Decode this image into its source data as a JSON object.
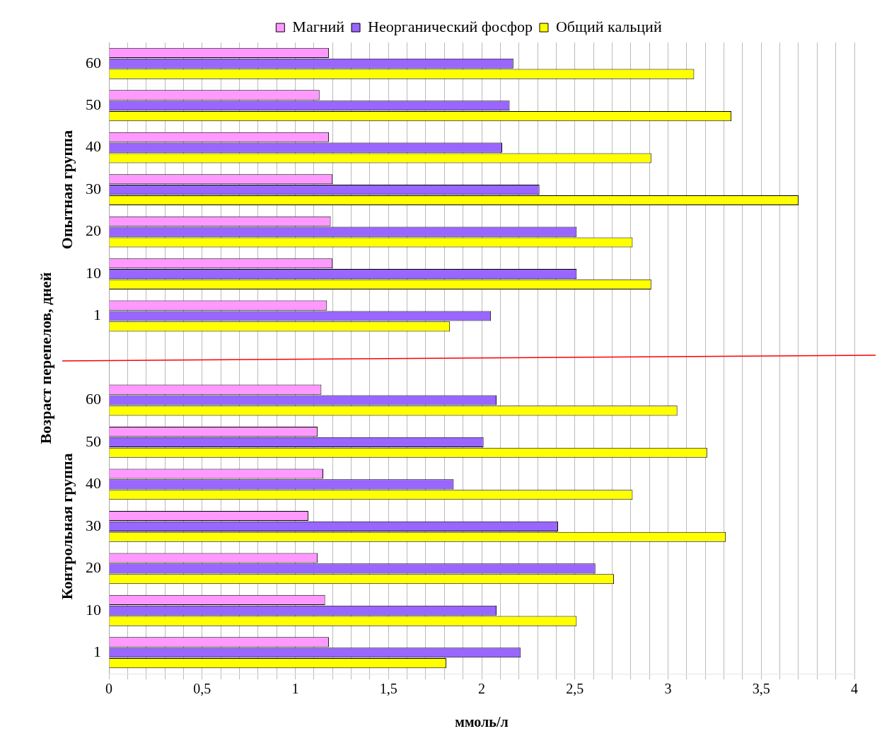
{
  "chart_data": {
    "type": "bar",
    "orientation": "horizontal",
    "xlabel": "ммоль/л",
    "ylabel": "Возраст перепелов, дней",
    "annotations": [
      "Опытная группа",
      "Контрольная группа"
    ],
    "categories": [
      "60",
      "50",
      "40",
      "30",
      "20",
      "10",
      "1",
      null,
      "60",
      "50",
      "40",
      "30",
      "20",
      "10",
      "1"
    ],
    "series": [
      {
        "name": "Магний",
        "color": "#ff99ff",
        "values": [
          1.18,
          1.13,
          1.18,
          1.2,
          1.19,
          1.2,
          1.17,
          0,
          1.14,
          1.12,
          1.15,
          1.07,
          1.12,
          1.16,
          1.18
        ]
      },
      {
        "name": "Неорганический фосфор",
        "color": "#9966ff",
        "values": [
          2.17,
          2.15,
          2.11,
          2.31,
          2.51,
          2.51,
          2.05,
          0,
          2.08,
          2.01,
          1.85,
          2.41,
          2.61,
          2.08,
          2.21
        ]
      },
      {
        "name": "Общий кальций",
        "color": "#ffff00",
        "values": [
          3.14,
          3.34,
          2.91,
          3.7,
          2.81,
          2.91,
          1.83,
          0,
          3.05,
          3.21,
          2.81,
          3.31,
          2.71,
          2.51,
          1.81
        ]
      }
    ],
    "xlim": [
      0,
      4
    ],
    "xticks": [
      0,
      {
        "value": 0.1,
        "label": null
      },
      {
        "value": 0.2,
        "label": null
      },
      {
        "value": 0.3,
        "label": null
      },
      {
        "value": 0.4,
        "label": null
      },
      {
        "value": 0.5,
        "label": "0,5"
      },
      {
        "value": 0.6,
        "label": null
      },
      {
        "value": 0.7,
        "label": null
      },
      {
        "value": 0.8,
        "label": null
      },
      {
        "value": 0.9,
        "label": null
      },
      1,
      {
        "value": 1.1,
        "label": null
      },
      {
        "value": 1.2,
        "label": null
      },
      {
        "value": 1.3,
        "label": null
      },
      {
        "value": 1.4,
        "label": null
      },
      {
        "value": 1.5,
        "label": "1,5"
      },
      {
        "value": 1.6,
        "label": null
      },
      {
        "value": 1.7,
        "label": null
      },
      {
        "value": 1.8,
        "label": null
      },
      {
        "value": 1.9,
        "label": null
      },
      2,
      {
        "value": 2.1,
        "label": null
      },
      {
        "value": 2.2,
        "label": null
      },
      {
        "value": 2.3,
        "label": null
      },
      {
        "value": 2.4,
        "label": null
      },
      {
        "value": 2.5,
        "label": "2,5"
      },
      {
        "value": 2.6,
        "label": null
      },
      {
        "value": 2.7,
        "label": null
      },
      {
        "value": 2.8,
        "label": null
      },
      {
        "value": 2.9,
        "label": null
      },
      3,
      {
        "value": 3.1,
        "label": null
      },
      {
        "value": 3.2,
        "label": null
      },
      {
        "value": 3.3,
        "label": null
      },
      {
        "value": 3.4,
        "label": null
      },
      {
        "value": 3.5,
        "label": "3,5"
      },
      {
        "value": 3.6,
        "label": null
      },
      {
        "value": 3.7,
        "label": null
      },
      {
        "value": 3.8,
        "label": null
      },
      {
        "value": 3.9,
        "label": null
      },
      4
    ],
    "grid": "x",
    "legend": "top"
  }
}
